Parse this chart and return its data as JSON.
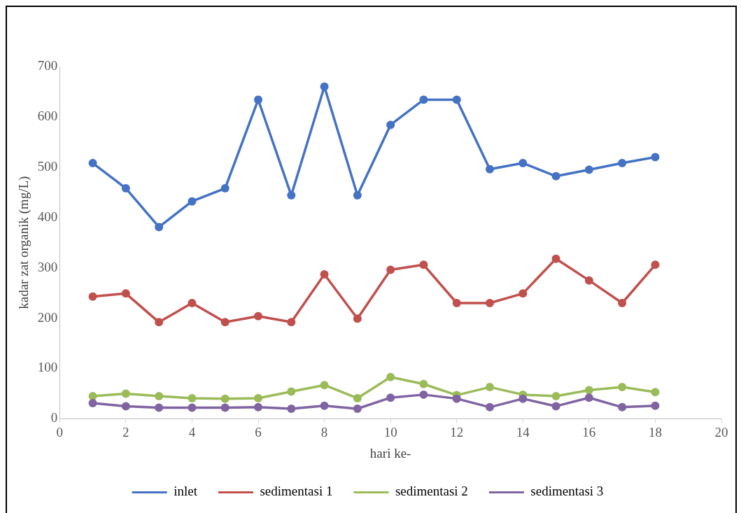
{
  "chart_data": {
    "type": "line",
    "xlabel": "hari ke-",
    "ylabel": "kadar zat organik (mg/L)",
    "x": [
      1,
      2,
      3,
      4,
      5,
      6,
      7,
      8,
      9,
      10,
      11,
      12,
      13,
      14,
      15,
      16,
      17,
      18
    ],
    "series": [
      {
        "name": "inlet",
        "color": "#4472c4",
        "values": [
          508,
          458,
          381,
          432,
          458,
          634,
          444,
          660,
          444,
          584,
          634,
          634,
          496,
          508,
          482,
          495,
          508,
          520
        ]
      },
      {
        "name": "sedimentasi 1",
        "color": "#c0504d",
        "values": [
          243,
          249,
          192,
          230,
          192,
          204,
          192,
          287,
          199,
          296,
          306,
          230,
          230,
          249,
          318,
          275,
          230,
          306
        ]
      },
      {
        "name": "sedimentasi 2",
        "color": "#9bbb59",
        "values": [
          45,
          50,
          45,
          41,
          40,
          41,
          54,
          67,
          41,
          83,
          69,
          47,
          63,
          48,
          45,
          57,
          63,
          53
        ]
      },
      {
        "name": "sedimentasi 3",
        "color": "#8064a2",
        "values": [
          31,
          25,
          22,
          22,
          22,
          23,
          20,
          26,
          20,
          42,
          48,
          40,
          23,
          40,
          25,
          42,
          23,
          26
        ]
      }
    ],
    "xlim": [
      0,
      20
    ],
    "xticks": [
      0,
      2,
      4,
      6,
      8,
      10,
      12,
      14,
      16,
      18,
      20
    ],
    "ylim": [
      0,
      700
    ],
    "yticks": [
      0,
      100,
      200,
      300,
      400,
      500,
      600,
      700
    ],
    "grid": false,
    "legend": "bottom",
    "marker": "circle",
    "line_style": "solid"
  }
}
